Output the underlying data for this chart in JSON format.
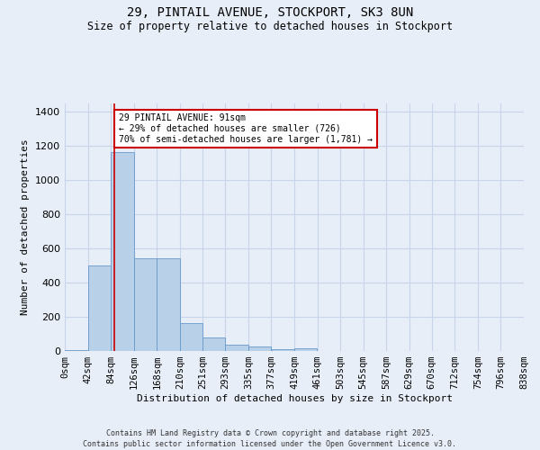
{
  "title_line1": "29, PINTAIL AVENUE, STOCKPORT, SK3 8UN",
  "title_line2": "Size of property relative to detached houses in Stockport",
  "xlabel": "Distribution of detached houses by size in Stockport",
  "ylabel": "Number of detached properties",
  "bar_edges": [
    0,
    42,
    84,
    126,
    168,
    210,
    251,
    293,
    335,
    377,
    419,
    461,
    503,
    545,
    587,
    629,
    670,
    712,
    754,
    796,
    838
  ],
  "bar_values": [
    5,
    500,
    1165,
    545,
    545,
    165,
    80,
    35,
    25,
    8,
    15,
    0,
    0,
    0,
    0,
    0,
    0,
    0,
    0,
    0
  ],
  "bar_color": "#b8d0e8",
  "bar_edgecolor": "#6699cc",
  "property_line_x": 91,
  "property_line_color": "#cc0000",
  "annotation_text": "29 PINTAIL AVENUE: 91sqm\n← 29% of detached houses are smaller (726)\n70% of semi-detached houses are larger (1,781) →",
  "annotation_box_color": "#ffffff",
  "annotation_box_edgecolor": "#cc0000",
  "ylim": [
    0,
    1450
  ],
  "yticks": [
    0,
    200,
    400,
    600,
    800,
    1000,
    1200,
    1400
  ],
  "tick_labels": [
    "0sqm",
    "42sqm",
    "84sqm",
    "126sqm",
    "168sqm",
    "210sqm",
    "251sqm",
    "293sqm",
    "335sqm",
    "377sqm",
    "419sqm",
    "461sqm",
    "503sqm",
    "545sqm",
    "587sqm",
    "629sqm",
    "670sqm",
    "712sqm",
    "754sqm",
    "796sqm",
    "838sqm"
  ],
  "background_color": "#e8eef8",
  "grid_color": "#c8d4e8",
  "footer_line1": "Contains HM Land Registry data © Crown copyright and database right 2025.",
  "footer_line2": "Contains public sector information licensed under the Open Government Licence v3.0."
}
